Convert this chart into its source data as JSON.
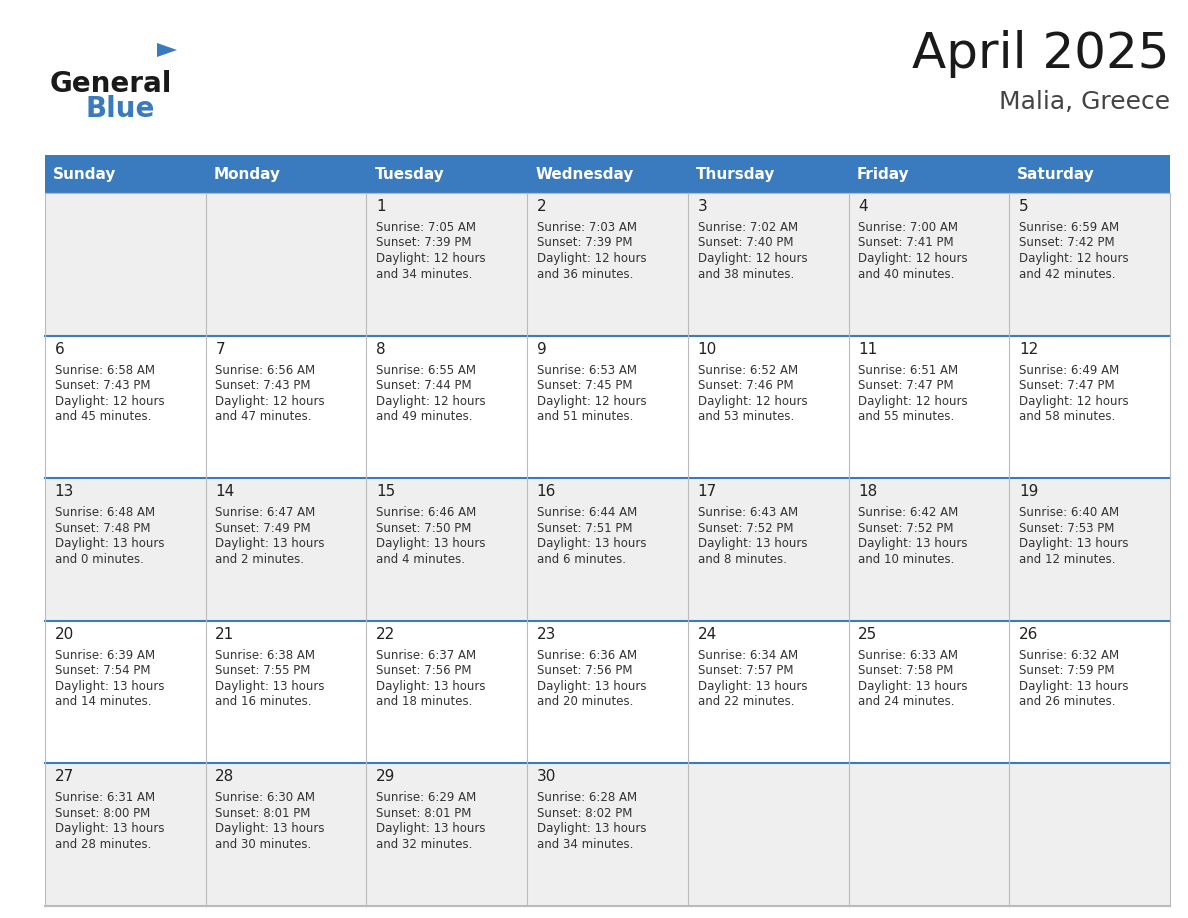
{
  "title": "April 2025",
  "subtitle": "Malia, Greece",
  "header_bg_color": "#3a7bbf",
  "header_text_color": "#ffffff",
  "day_names": [
    "Sunday",
    "Monday",
    "Tuesday",
    "Wednesday",
    "Thursday",
    "Friday",
    "Saturday"
  ],
  "cell_bg_even": "#efefef",
  "cell_bg_odd": "#ffffff",
  "title_color": "#1a1a1a",
  "subtitle_color": "#444444",
  "day_num_color": "#222222",
  "info_color": "#333333",
  "border_color": "#bbbbbb",
  "row_border_color": "#3a7bbf",
  "logo_general_color": "#1a1a1a",
  "logo_blue_color": "#3a7bbf",
  "weeks": [
    [
      {
        "day": null,
        "sunrise": null,
        "sunset": null,
        "daylight_h": null,
        "daylight_m": null
      },
      {
        "day": null,
        "sunrise": null,
        "sunset": null,
        "daylight_h": null,
        "daylight_m": null
      },
      {
        "day": 1,
        "sunrise": "7:05 AM",
        "sunset": "7:39 PM",
        "daylight_h": "12 hours",
        "daylight_m": "and 34 minutes."
      },
      {
        "day": 2,
        "sunrise": "7:03 AM",
        "sunset": "7:39 PM",
        "daylight_h": "12 hours",
        "daylight_m": "and 36 minutes."
      },
      {
        "day": 3,
        "sunrise": "7:02 AM",
        "sunset": "7:40 PM",
        "daylight_h": "12 hours",
        "daylight_m": "and 38 minutes."
      },
      {
        "day": 4,
        "sunrise": "7:00 AM",
        "sunset": "7:41 PM",
        "daylight_h": "12 hours",
        "daylight_m": "and 40 minutes."
      },
      {
        "day": 5,
        "sunrise": "6:59 AM",
        "sunset": "7:42 PM",
        "daylight_h": "12 hours",
        "daylight_m": "and 42 minutes."
      }
    ],
    [
      {
        "day": 6,
        "sunrise": "6:58 AM",
        "sunset": "7:43 PM",
        "daylight_h": "12 hours",
        "daylight_m": "and 45 minutes."
      },
      {
        "day": 7,
        "sunrise": "6:56 AM",
        "sunset": "7:43 PM",
        "daylight_h": "12 hours",
        "daylight_m": "and 47 minutes."
      },
      {
        "day": 8,
        "sunrise": "6:55 AM",
        "sunset": "7:44 PM",
        "daylight_h": "12 hours",
        "daylight_m": "and 49 minutes."
      },
      {
        "day": 9,
        "sunrise": "6:53 AM",
        "sunset": "7:45 PM",
        "daylight_h": "12 hours",
        "daylight_m": "and 51 minutes."
      },
      {
        "day": 10,
        "sunrise": "6:52 AM",
        "sunset": "7:46 PM",
        "daylight_h": "12 hours",
        "daylight_m": "and 53 minutes."
      },
      {
        "day": 11,
        "sunrise": "6:51 AM",
        "sunset": "7:47 PM",
        "daylight_h": "12 hours",
        "daylight_m": "and 55 minutes."
      },
      {
        "day": 12,
        "sunrise": "6:49 AM",
        "sunset": "7:47 PM",
        "daylight_h": "12 hours",
        "daylight_m": "and 58 minutes."
      }
    ],
    [
      {
        "day": 13,
        "sunrise": "6:48 AM",
        "sunset": "7:48 PM",
        "daylight_h": "13 hours",
        "daylight_m": "and 0 minutes."
      },
      {
        "day": 14,
        "sunrise": "6:47 AM",
        "sunset": "7:49 PM",
        "daylight_h": "13 hours",
        "daylight_m": "and 2 minutes."
      },
      {
        "day": 15,
        "sunrise": "6:46 AM",
        "sunset": "7:50 PM",
        "daylight_h": "13 hours",
        "daylight_m": "and 4 minutes."
      },
      {
        "day": 16,
        "sunrise": "6:44 AM",
        "sunset": "7:51 PM",
        "daylight_h": "13 hours",
        "daylight_m": "and 6 minutes."
      },
      {
        "day": 17,
        "sunrise": "6:43 AM",
        "sunset": "7:52 PM",
        "daylight_h": "13 hours",
        "daylight_m": "and 8 minutes."
      },
      {
        "day": 18,
        "sunrise": "6:42 AM",
        "sunset": "7:52 PM",
        "daylight_h": "13 hours",
        "daylight_m": "and 10 minutes."
      },
      {
        "day": 19,
        "sunrise": "6:40 AM",
        "sunset": "7:53 PM",
        "daylight_h": "13 hours",
        "daylight_m": "and 12 minutes."
      }
    ],
    [
      {
        "day": 20,
        "sunrise": "6:39 AM",
        "sunset": "7:54 PM",
        "daylight_h": "13 hours",
        "daylight_m": "and 14 minutes."
      },
      {
        "day": 21,
        "sunrise": "6:38 AM",
        "sunset": "7:55 PM",
        "daylight_h": "13 hours",
        "daylight_m": "and 16 minutes."
      },
      {
        "day": 22,
        "sunrise": "6:37 AM",
        "sunset": "7:56 PM",
        "daylight_h": "13 hours",
        "daylight_m": "and 18 minutes."
      },
      {
        "day": 23,
        "sunrise": "6:36 AM",
        "sunset": "7:56 PM",
        "daylight_h": "13 hours",
        "daylight_m": "and 20 minutes."
      },
      {
        "day": 24,
        "sunrise": "6:34 AM",
        "sunset": "7:57 PM",
        "daylight_h": "13 hours",
        "daylight_m": "and 22 minutes."
      },
      {
        "day": 25,
        "sunrise": "6:33 AM",
        "sunset": "7:58 PM",
        "daylight_h": "13 hours",
        "daylight_m": "and 24 minutes."
      },
      {
        "day": 26,
        "sunrise": "6:32 AM",
        "sunset": "7:59 PM",
        "daylight_h": "13 hours",
        "daylight_m": "and 26 minutes."
      }
    ],
    [
      {
        "day": 27,
        "sunrise": "6:31 AM",
        "sunset": "8:00 PM",
        "daylight_h": "13 hours",
        "daylight_m": "and 28 minutes."
      },
      {
        "day": 28,
        "sunrise": "6:30 AM",
        "sunset": "8:01 PM",
        "daylight_h": "13 hours",
        "daylight_m": "and 30 minutes."
      },
      {
        "day": 29,
        "sunrise": "6:29 AM",
        "sunset": "8:01 PM",
        "daylight_h": "13 hours",
        "daylight_m": "and 32 minutes."
      },
      {
        "day": 30,
        "sunrise": "6:28 AM",
        "sunset": "8:02 PM",
        "daylight_h": "13 hours",
        "daylight_m": "and 34 minutes."
      },
      {
        "day": null,
        "sunrise": null,
        "sunset": null,
        "daylight_h": null,
        "daylight_m": null
      },
      {
        "day": null,
        "sunrise": null,
        "sunset": null,
        "daylight_h": null,
        "daylight_m": null
      },
      {
        "day": null,
        "sunrise": null,
        "sunset": null,
        "daylight_h": null,
        "daylight_m": null
      }
    ]
  ]
}
